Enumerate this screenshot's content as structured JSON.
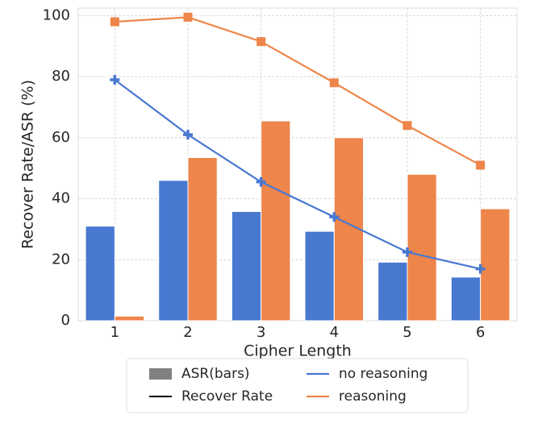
{
  "chart_data": {
    "type": "bar_line",
    "xlabel": "Cipher Length",
    "ylabel": "Recover Rate/ASR (%)",
    "categories": [
      "1",
      "2",
      "3",
      "4",
      "5",
      "6"
    ],
    "series": [
      {
        "name": "no reasoning",
        "color": "#4878d0",
        "marker": "plus",
        "asr": [
          31,
          46,
          35.8,
          29.3,
          19.2,
          14.3
        ],
        "recover_rate": [
          79,
          61,
          45.5,
          34,
          22.5,
          17
        ]
      },
      {
        "name": "reasoning",
        "color": "#ee854a",
        "marker": "square",
        "asr": [
          1.5,
          53.5,
          65.5,
          60,
          48,
          36.7
        ],
        "recover_rate": [
          98,
          99.5,
          91.5,
          78,
          64,
          51
        ]
      }
    ],
    "legend_items": [
      {
        "label": "ASR(bars)",
        "color": "#808080",
        "kind": "patch"
      },
      {
        "label": "Recover Rate",
        "color": "#000000",
        "kind": "line"
      }
    ],
    "ylim": [
      0,
      102.5
    ],
    "yticks": [
      0,
      20,
      40,
      60,
      80,
      100
    ],
    "grid": true
  }
}
